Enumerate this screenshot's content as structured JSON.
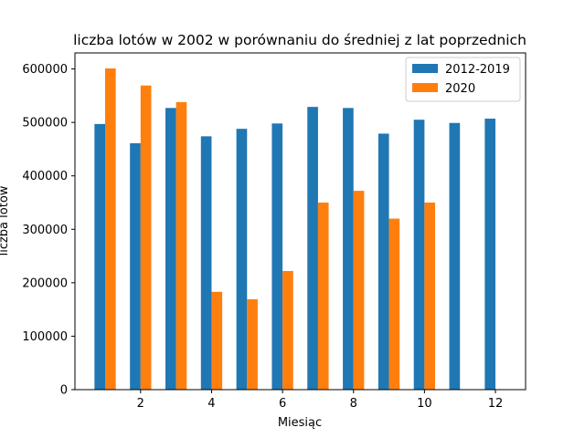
{
  "chart_data": {
    "type": "bar",
    "title": "liczba lotów w 2002 w porównaniu do średniej z lat poprzednich",
    "xlabel": "Miesiąc",
    "ylabel": "liczba lotów",
    "x": [
      1,
      2,
      3,
      4,
      5,
      6,
      7,
      8,
      9,
      10,
      11,
      12
    ],
    "xlim": [
      0.15,
      12.85
    ],
    "ylim": [
      0,
      630000
    ],
    "xticks": [
      2,
      4,
      6,
      8,
      10,
      12
    ],
    "yticks": [
      0,
      100000,
      200000,
      300000,
      400000,
      500000,
      600000
    ],
    "grid": false,
    "legend_position": "top-right",
    "series": [
      {
        "name": "2012-2019",
        "color": "#1f77b4",
        "values": [
          497000,
          461000,
          527000,
          474000,
          488000,
          498000,
          529000,
          527000,
          479000,
          505000,
          499000,
          507000
        ]
      },
      {
        "name": "2020",
        "color": "#ff7f0e",
        "values": [
          601000,
          569000,
          538000,
          183000,
          169000,
          222000,
          350000,
          372000,
          320000,
          350000,
          null,
          null
        ]
      }
    ]
  }
}
